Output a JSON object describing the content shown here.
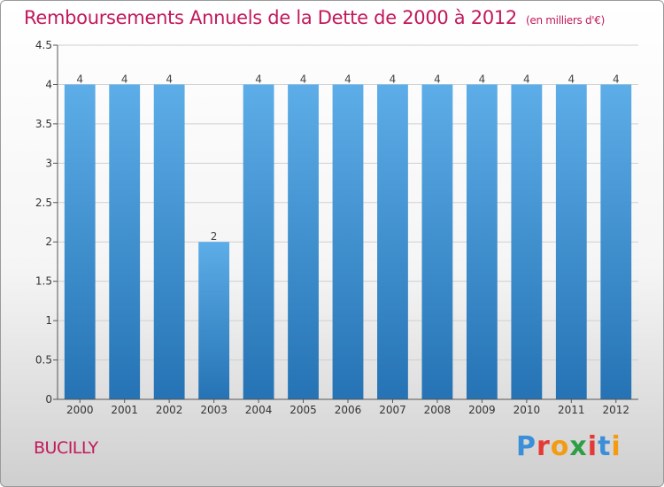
{
  "title": "Remboursements Annuels de la Dette de 2000 à 2012",
  "unit": "(en milliers d'€)",
  "commune": "BUCILLY",
  "logo": {
    "text": "Proxiti",
    "colors": [
      "#3a8fd8",
      "#e53935",
      "#f39c12",
      "#2e9e44",
      "#e53935",
      "#3a8fd8",
      "#f39c12"
    ]
  },
  "colors": {
    "title": "#c2185b",
    "bar_top": "#5dade8",
    "bar_bottom": "#2573b4"
  },
  "chart_data": {
    "type": "bar",
    "title": "Remboursements Annuels de la Dette de 2000 à 2012",
    "xlabel": "",
    "ylabel": "",
    "categories": [
      "2000",
      "2001",
      "2002",
      "2003",
      "2004",
      "2005",
      "2006",
      "2007",
      "2008",
      "2009",
      "2010",
      "2011",
      "2012"
    ],
    "values": [
      4,
      4,
      4,
      2,
      4,
      4,
      4,
      4,
      4,
      4,
      4,
      4,
      4
    ],
    "data_labels": [
      "4",
      "4",
      "4",
      "2",
      "4",
      "4",
      "4",
      "4",
      "4",
      "4",
      "4",
      "4",
      "4"
    ],
    "yticks": [
      0,
      0.5,
      1,
      1.5,
      2,
      2.5,
      3,
      3.5,
      4,
      4.5
    ],
    "ytick_labels": [
      "0",
      "0.5",
      "1",
      "1.5",
      "2",
      "2.5",
      "3",
      "3.5",
      "4",
      "4.5"
    ],
    "ylim": [
      0,
      4.5
    ],
    "grid": true
  }
}
